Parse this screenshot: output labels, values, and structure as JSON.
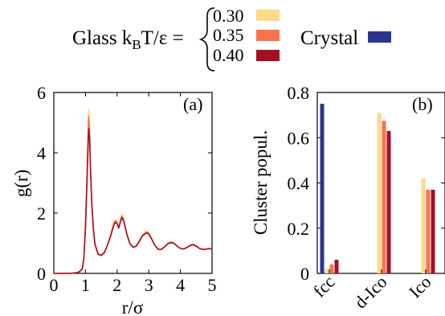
{
  "legend": {
    "glass_label_prefix": "Glass k",
    "glass_label_sub": "B",
    "glass_label_suffix": "T/ε =",
    "temperatures": [
      {
        "label": "0.30",
        "color": "#fdd98a"
      },
      {
        "label": "0.35",
        "color": "#f8734a"
      },
      {
        "label": "0.40",
        "color": "#a50f25"
      }
    ],
    "crystal_label": "Crystal",
    "crystal_color": "#2b3590"
  },
  "chart_data": [
    {
      "type": "line",
      "panel_label": "(a)",
      "xlabel": "r/σ",
      "ylabel": "g(r)",
      "xlim": [
        0,
        5
      ],
      "ylim": [
        0,
        6
      ],
      "xticks": [
        "0",
        "1",
        "2",
        "3",
        "4",
        "5"
      ],
      "yticks": [
        "0",
        "2",
        "4",
        "6"
      ],
      "x": [
        0.0,
        0.5,
        0.7,
        0.8,
        0.9,
        0.95,
        1.0,
        1.05,
        1.1,
        1.13,
        1.16,
        1.2,
        1.25,
        1.3,
        1.4,
        1.5,
        1.6,
        1.7,
        1.8,
        1.9,
        1.95,
        2.0,
        2.05,
        2.1,
        2.15,
        2.2,
        2.25,
        2.3,
        2.4,
        2.5,
        2.6,
        2.7,
        2.8,
        2.9,
        2.95,
        3.0,
        3.1,
        3.2,
        3.3,
        3.4,
        3.5,
        3.6,
        3.7,
        3.8,
        3.9,
        4.0,
        4.1,
        4.2,
        4.3,
        4.4,
        4.5,
        4.6,
        4.7,
        4.8,
        4.9,
        5.0
      ],
      "series": [
        {
          "name": "0.30",
          "values": [
            0,
            0,
            0.02,
            0.05,
            0.15,
            0.5,
            1.6,
            3.5,
            5.45,
            4.9,
            3.6,
            2.4,
            1.5,
            0.95,
            0.62,
            0.58,
            0.68,
            0.95,
            1.3,
            1.7,
            1.78,
            1.7,
            1.55,
            1.75,
            1.95,
            1.85,
            1.6,
            1.35,
            1.0,
            0.85,
            0.9,
            1.08,
            1.28,
            1.38,
            1.4,
            1.36,
            1.15,
            0.92,
            0.78,
            0.78,
            0.88,
            1.0,
            1.06,
            1.02,
            0.9,
            0.82,
            0.8,
            0.86,
            0.94,
            0.98,
            0.92,
            0.82,
            0.78,
            0.8,
            0.84,
            0.8
          ]
        },
        {
          "name": "0.35",
          "values": [
            0,
            0,
            0.02,
            0.05,
            0.15,
            0.5,
            1.55,
            3.3,
            5.2,
            4.75,
            3.5,
            2.35,
            1.5,
            0.96,
            0.63,
            0.59,
            0.69,
            0.95,
            1.28,
            1.66,
            1.74,
            1.67,
            1.53,
            1.72,
            1.9,
            1.8,
            1.58,
            1.34,
            1.0,
            0.86,
            0.9,
            1.07,
            1.26,
            1.35,
            1.37,
            1.33,
            1.13,
            0.92,
            0.79,
            0.79,
            0.88,
            0.99,
            1.04,
            1.0,
            0.9,
            0.83,
            0.81,
            0.86,
            0.93,
            0.96,
            0.91,
            0.83,
            0.79,
            0.8,
            0.83,
            0.8
          ]
        },
        {
          "name": "0.40",
          "values": [
            0,
            0,
            0.02,
            0.05,
            0.15,
            0.5,
            1.5,
            3.1,
            4.8,
            4.5,
            3.4,
            2.3,
            1.48,
            0.97,
            0.64,
            0.6,
            0.7,
            0.95,
            1.25,
            1.62,
            1.7,
            1.64,
            1.5,
            1.68,
            1.85,
            1.76,
            1.56,
            1.32,
            1.0,
            0.87,
            0.9,
            1.06,
            1.24,
            1.32,
            1.34,
            1.3,
            1.12,
            0.92,
            0.8,
            0.8,
            0.88,
            0.98,
            1.02,
            0.99,
            0.9,
            0.83,
            0.81,
            0.85,
            0.92,
            0.95,
            0.9,
            0.83,
            0.8,
            0.8,
            0.82,
            0.8
          ]
        }
      ]
    },
    {
      "type": "bar",
      "panel_label": "(b)",
      "xlabel": "",
      "ylabel": "Cluster popul.",
      "ylim": [
        0,
        0.8
      ],
      "yticks": [
        "0",
        "0.2",
        "0.4",
        "0.6",
        "0.8"
      ],
      "categories": [
        "fcc",
        "d-Ico",
        "Ico"
      ],
      "series": [
        {
          "name": "Crystal",
          "values": [
            0.75,
            0.0,
            0.0
          ]
        },
        {
          "name": "0.30",
          "values": [
            0.02,
            0.71,
            0.42
          ]
        },
        {
          "name": "0.35",
          "values": [
            0.04,
            0.675,
            0.37
          ]
        },
        {
          "name": "0.40",
          "values": [
            0.06,
            0.63,
            0.37
          ]
        }
      ]
    }
  ]
}
